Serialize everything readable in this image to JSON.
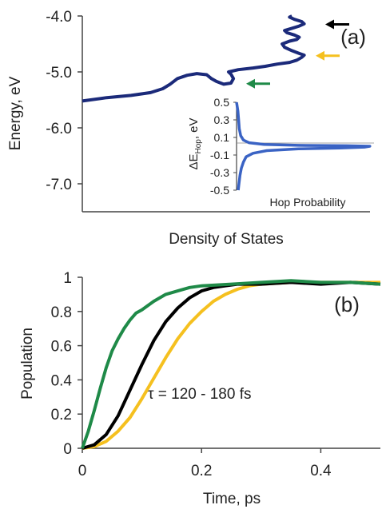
{
  "colors": {
    "navy": "#1b2a7a",
    "blue": "#3a63c4",
    "black": "#000000",
    "gold": "#f5c01f",
    "green": "#1f8a48",
    "axis": "#444444"
  },
  "chart_data": [
    {
      "type": "line",
      "panel_label": "(a)",
      "xlabel": "Density of States",
      "ylabel": "Energy, eV",
      "ylim": [
        -7.5,
        -4.0
      ],
      "xlim": [
        0,
        1
      ],
      "yticks": [
        "-4.0",
        "-5.0",
        "-6.0",
        "-7.0"
      ],
      "ytick_values": [
        -4.0,
        -5.0,
        -6.0,
        -7.0
      ],
      "series": [
        {
          "color": "#1b2a7a",
          "points": [
            [
              0.0,
              -5.52
            ],
            [
              0.1,
              -5.46
            ],
            [
              0.2,
              -5.42
            ],
            [
              0.28,
              -5.37
            ],
            [
              0.33,
              -5.3
            ],
            [
              0.36,
              -5.22
            ],
            [
              0.39,
              -5.12
            ],
            [
              0.43,
              -5.06
            ],
            [
              0.47,
              -5.03
            ],
            [
              0.51,
              -5.05
            ],
            [
              0.53,
              -5.12
            ],
            [
              0.55,
              -5.17
            ],
            [
              0.58,
              -5.22
            ],
            [
              0.61,
              -5.2
            ],
            [
              0.62,
              -5.12
            ],
            [
              0.61,
              -5.04
            ],
            [
              0.6,
              -5.0
            ],
            [
              0.64,
              -4.96
            ],
            [
              0.7,
              -4.93
            ],
            [
              0.75,
              -4.9
            ],
            [
              0.8,
              -4.86
            ],
            [
              0.85,
              -4.83
            ],
            [
              0.88,
              -4.79
            ],
            [
              0.9,
              -4.74
            ],
            [
              0.91,
              -4.7
            ],
            [
              0.89,
              -4.67
            ],
            [
              0.86,
              -4.62
            ],
            [
              0.83,
              -4.56
            ],
            [
              0.82,
              -4.5
            ],
            [
              0.85,
              -4.45
            ],
            [
              0.88,
              -4.42
            ],
            [
              0.89,
              -4.38
            ],
            [
              0.87,
              -4.34
            ],
            [
              0.84,
              -4.3
            ],
            [
              0.83,
              -4.26
            ],
            [
              0.86,
              -4.22
            ],
            [
              0.89,
              -4.18
            ],
            [
              0.91,
              -4.14
            ],
            [
              0.9,
              -4.1
            ],
            [
              0.87,
              -4.06
            ],
            [
              0.85,
              -4.02
            ],
            [
              0.86,
              -4.0
            ]
          ]
        }
      ],
      "arrows": [
        {
          "energy": -4.15,
          "color": "#000000"
        },
        {
          "energy": -4.71,
          "color": "#f5c01f"
        },
        {
          "energy": -5.21,
          "color": "#1f8a48"
        }
      ]
    },
    {
      "type": "line",
      "inset": true,
      "xlabel": "Hop Probability",
      "ylabel": "ΔE",
      "ylabel_sub": "Hop",
      "ylabel_unit": ", eV",
      "ylim": [
        -0.5,
        0.5
      ],
      "xlim": [
        0,
        1
      ],
      "yticks": [
        "0.5",
        "0.3",
        "0.1",
        "-0.1",
        "-0.3",
        "-0.5"
      ],
      "ytick_values": [
        0.5,
        0.3,
        0.1,
        -0.1,
        -0.3,
        -0.5
      ],
      "series": [
        {
          "color": "#3a63c4",
          "points": [
            [
              0.0,
              0.5
            ],
            [
              0.01,
              0.4
            ],
            [
              0.015,
              0.3
            ],
            [
              0.02,
              0.2
            ],
            [
              0.03,
              0.12
            ],
            [
              0.05,
              0.07
            ],
            [
              0.09,
              0.04
            ],
            [
              0.2,
              0.02
            ],
            [
              0.45,
              0.01
            ],
            [
              0.8,
              0.005
            ],
            [
              0.97,
              0.0
            ],
            [
              0.93,
              -0.01
            ],
            [
              0.75,
              -0.02
            ],
            [
              0.45,
              -0.03
            ],
            [
              0.22,
              -0.05
            ],
            [
              0.12,
              -0.08
            ],
            [
              0.07,
              -0.12
            ],
            [
              0.05,
              -0.18
            ],
            [
              0.035,
              -0.25
            ],
            [
              0.025,
              -0.33
            ],
            [
              0.018,
              -0.42
            ],
            [
              0.012,
              -0.5
            ]
          ]
        }
      ]
    },
    {
      "type": "line",
      "panel_label": "(b)",
      "xlabel": "Time, ps",
      "ylabel": "Population",
      "xlim": [
        0,
        0.5
      ],
      "ylim": [
        0,
        1
      ],
      "xticks": [
        "0",
        "0.2",
        "0.4"
      ],
      "xtick_values": [
        0,
        0.2,
        0.4
      ],
      "yticks": [
        "0",
        "0.2",
        "0.4",
        "0.6",
        "0.8",
        "1"
      ],
      "ytick_values": [
        0,
        0.2,
        0.4,
        0.6,
        0.8,
        1
      ],
      "annotation": "τ = 120 - 180 fs",
      "series": [
        {
          "color": "#f5c01f",
          "points": [
            [
              0.0,
              0.0
            ],
            [
              0.02,
              0.01
            ],
            [
              0.04,
              0.04
            ],
            [
              0.06,
              0.1
            ],
            [
              0.08,
              0.18
            ],
            [
              0.1,
              0.29
            ],
            [
              0.12,
              0.41
            ],
            [
              0.14,
              0.53
            ],
            [
              0.16,
              0.64
            ],
            [
              0.18,
              0.73
            ],
            [
              0.2,
              0.8
            ],
            [
              0.22,
              0.86
            ],
            [
              0.24,
              0.9
            ],
            [
              0.26,
              0.93
            ],
            [
              0.28,
              0.95
            ],
            [
              0.3,
              0.96
            ],
            [
              0.35,
              0.97
            ],
            [
              0.4,
              0.97
            ],
            [
              0.45,
              0.97
            ],
            [
              0.5,
              0.97
            ]
          ]
        },
        {
          "color": "#000000",
          "points": [
            [
              0.0,
              0.0
            ],
            [
              0.02,
              0.02
            ],
            [
              0.04,
              0.08
            ],
            [
              0.06,
              0.19
            ],
            [
              0.08,
              0.34
            ],
            [
              0.1,
              0.49
            ],
            [
              0.12,
              0.63
            ],
            [
              0.14,
              0.74
            ],
            [
              0.16,
              0.82
            ],
            [
              0.18,
              0.88
            ],
            [
              0.2,
              0.92
            ],
            [
              0.22,
              0.94
            ],
            [
              0.24,
              0.95
            ],
            [
              0.26,
              0.96
            ],
            [
              0.3,
              0.96
            ],
            [
              0.35,
              0.97
            ],
            [
              0.4,
              0.96
            ],
            [
              0.45,
              0.97
            ],
            [
              0.5,
              0.96
            ]
          ]
        },
        {
          "color": "#1f8a48",
          "points": [
            [
              0.0,
              0.0
            ],
            [
              0.01,
              0.1
            ],
            [
              0.02,
              0.22
            ],
            [
              0.03,
              0.35
            ],
            [
              0.04,
              0.47
            ],
            [
              0.05,
              0.57
            ],
            [
              0.06,
              0.64
            ],
            [
              0.07,
              0.7
            ],
            [
              0.08,
              0.75
            ],
            [
              0.09,
              0.79
            ],
            [
              0.1,
              0.81
            ],
            [
              0.12,
              0.86
            ],
            [
              0.14,
              0.9
            ],
            [
              0.16,
              0.92
            ],
            [
              0.18,
              0.94
            ],
            [
              0.2,
              0.95
            ],
            [
              0.25,
              0.96
            ],
            [
              0.3,
              0.97
            ],
            [
              0.35,
              0.98
            ],
            [
              0.4,
              0.97
            ],
            [
              0.45,
              0.97
            ],
            [
              0.5,
              0.96
            ]
          ]
        }
      ]
    }
  ]
}
